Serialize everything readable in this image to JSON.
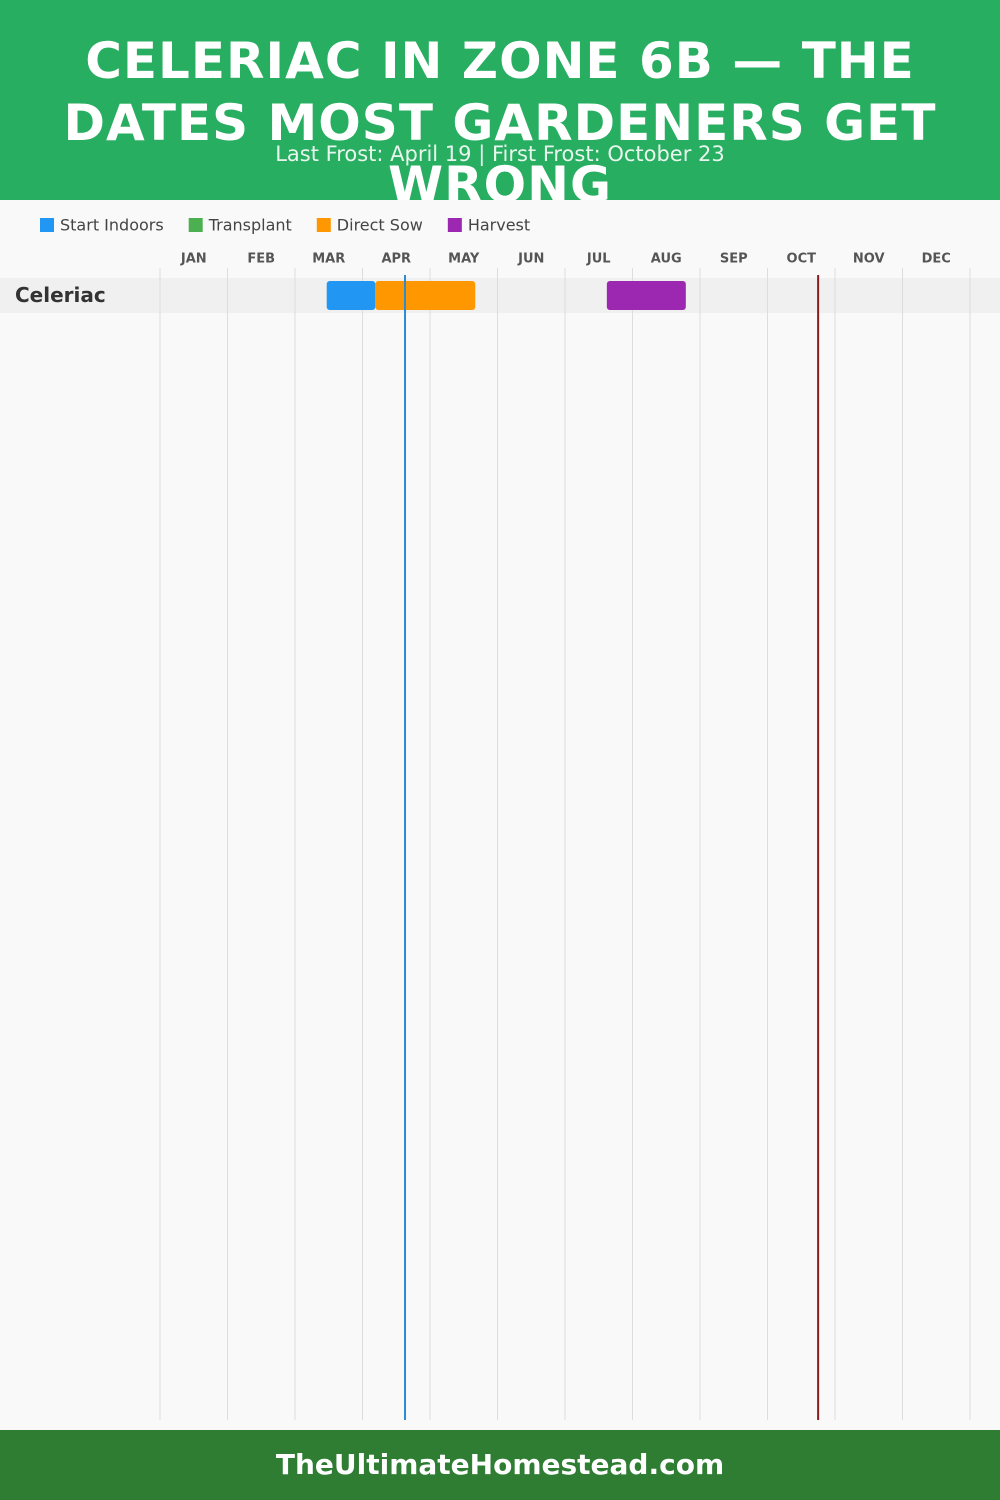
{
  "chart_data": {
    "type": "gantt",
    "title": "CELERIAC IN ZONE 6B — THE DATES MOST GARDENERS GET WRONG",
    "subtitle": "Last Frost: April 19 | First Frost: October 23",
    "categories": [
      "Celeriac"
    ],
    "xlim": [
      0,
      12
    ],
    "xticks": [
      {
        "value": 0.5,
        "label": "JAN"
      },
      {
        "value": 1.5,
        "label": "FEB"
      },
      {
        "value": 2.5,
        "label": "MAR"
      },
      {
        "value": 3.5,
        "label": "APR"
      },
      {
        "value": 4.5,
        "label": "MAY"
      },
      {
        "value": 5.5,
        "label": "JUN"
      },
      {
        "value": 6.5,
        "label": "JUL"
      },
      {
        "value": 7.5,
        "label": "AUG"
      },
      {
        "value": 8.5,
        "label": "SEP"
      },
      {
        "value": 9.5,
        "label": "OCT"
      },
      {
        "value": 10.5,
        "label": "NOV"
      },
      {
        "value": 11.5,
        "label": "DEC"
      }
    ],
    "grid": true,
    "series": [
      {
        "name": "Start Indoors",
        "color": "#2196f3",
        "values": [
          [
            2.47,
            3.19
          ]
        ]
      },
      {
        "name": "Transplant",
        "color": "#4caf50",
        "values": [
          null
        ]
      },
      {
        "name": "Direct Sow",
        "color": "#ff9800",
        "values": [
          [
            3.19,
            4.67
          ]
        ]
      },
      {
        "name": "Harvest",
        "color": "#9c27b0",
        "values": [
          [
            6.62,
            7.79
          ]
        ]
      }
    ],
    "markers": [
      {
        "value": 3.63,
        "color": "#2a8ad4"
      },
      {
        "value": 9.75,
        "color": "#8b1a1a"
      }
    ],
    "footer": "TheUltimateHomestead.com"
  }
}
